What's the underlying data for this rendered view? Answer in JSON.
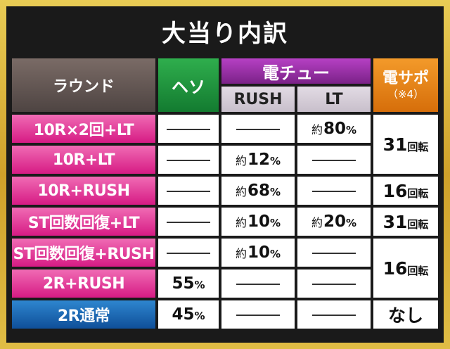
{
  "title": "大当り内訳",
  "headers": {
    "round": "ラウンド",
    "heso": "ヘソ",
    "denchu": "電チュー",
    "rush": "RUSH",
    "lt": "LT",
    "densapo": "電サポ",
    "densapo_note": "（※4）"
  },
  "rows": [
    {
      "label": "10R×2回+LT",
      "label_color": "pink",
      "heso": "",
      "rush": "",
      "lt": {
        "prefix": "約",
        "num": "80",
        "unit": "%"
      }
    },
    {
      "label": "10R+LT",
      "label_color": "pink",
      "heso": "",
      "rush": {
        "prefix": "約",
        "num": "12",
        "unit": "%"
      },
      "lt": ""
    },
    {
      "label": "10R+RUSH",
      "label_color": "pink",
      "heso": "",
      "rush": {
        "prefix": "約",
        "num": "68",
        "unit": "%"
      },
      "lt": ""
    },
    {
      "label": "ST回数回復+LT",
      "label_color": "pink",
      "heso": "",
      "rush": {
        "prefix": "約",
        "num": "10",
        "unit": "%"
      },
      "lt": {
        "prefix": "約",
        "num": "20",
        "unit": "%"
      }
    },
    {
      "label": "ST回数回復+RUSH",
      "label_color": "pink",
      "heso": "",
      "rush": {
        "prefix": "約",
        "num": "10",
        "unit": "%"
      },
      "lt": ""
    },
    {
      "label": "2R+RUSH",
      "label_color": "pink",
      "heso": {
        "num": "55",
        "unit": "%"
      },
      "rush": "",
      "lt": ""
    },
    {
      "label": "2R通常",
      "label_color": "blue",
      "heso": {
        "num": "45",
        "unit": "%"
      },
      "rush": "",
      "lt": ""
    }
  ],
  "densapo": [
    {
      "num": "31",
      "unit": "回転"
    },
    {
      "num": "16",
      "unit": "回転"
    },
    {
      "num": "31",
      "unit": "回転"
    },
    {
      "num": "16",
      "unit": "回転"
    },
    {
      "text": "なし"
    }
  ]
}
